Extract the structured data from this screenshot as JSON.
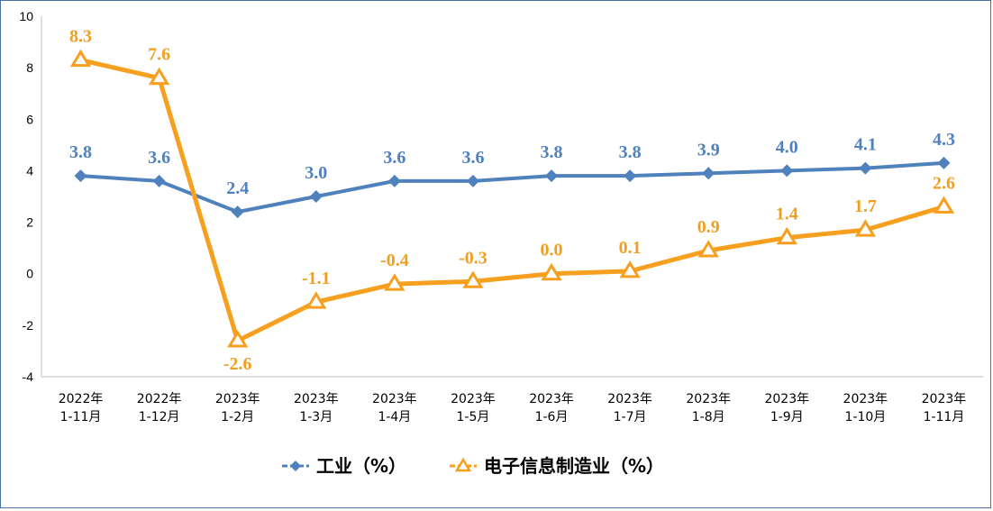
{
  "chart_data": {
    "type": "line",
    "categories": [
      [
        "2022年",
        "1-11月"
      ],
      [
        "2022年",
        "1-12月"
      ],
      [
        "2023年",
        "1-2月"
      ],
      [
        "2023年",
        "1-3月"
      ],
      [
        "2023年",
        "1-4月"
      ],
      [
        "2023年",
        "1-5月"
      ],
      [
        "2023年",
        "1-6月"
      ],
      [
        "2023年",
        "1-7月"
      ],
      [
        "2023年",
        "1-8月"
      ],
      [
        "2023年",
        "1-9月"
      ],
      [
        "2023年",
        "1-10月"
      ],
      [
        "2023年",
        "1-11月"
      ]
    ],
    "series": [
      {
        "name": "工业（%）",
        "color": "#4f81bd",
        "marker": "diamond",
        "values": [
          3.8,
          3.6,
          2.4,
          3.0,
          3.6,
          3.6,
          3.8,
          3.8,
          3.9,
          4.0,
          4.1,
          4.3
        ],
        "labels": [
          "3.8",
          "3.6",
          "2.4",
          "3.0",
          "3.6",
          "3.6",
          "3.8",
          "3.8",
          "3.9",
          "4.0",
          "4.1",
          "4.3"
        ]
      },
      {
        "name": "电子信息制造业（%）",
        "color": "#f79f1f",
        "marker": "triangle",
        "values": [
          8.3,
          7.6,
          -2.6,
          -1.1,
          -0.4,
          -0.3,
          0.0,
          0.1,
          0.9,
          1.4,
          1.7,
          2.6
        ],
        "labels": [
          "8.3",
          "7.6",
          "-2.6",
          "-1.1",
          "-0.4",
          "-0.3",
          "0.0",
          "0.1",
          "0.9",
          "1.4",
          "1.7",
          "2.6"
        ]
      }
    ],
    "ylim": [
      -4,
      10
    ],
    "yticks": [
      "-4",
      "-2",
      "0",
      "2",
      "4",
      "6",
      "8",
      "10"
    ],
    "grid": false,
    "legend": "bottom"
  }
}
